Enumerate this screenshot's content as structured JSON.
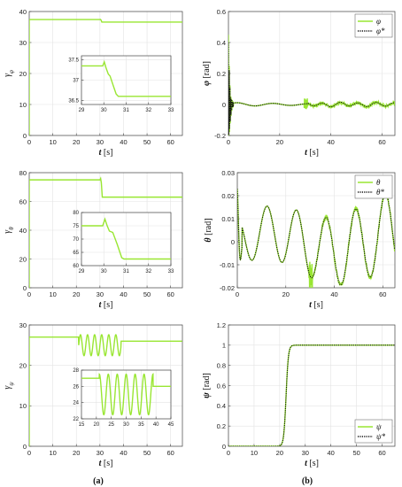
{
  "captions": [
    "(a)",
    "(b)"
  ],
  "colors": {
    "green": "#99e632",
    "black": "#111111"
  },
  "chart_data": [
    {
      "type": "line",
      "id": "gamma-phi",
      "ylabel": "γφ",
      "xlabel": "t [s]",
      "xlim": [
        0,
        65
      ],
      "ylim": [
        0,
        40
      ],
      "xticks": [
        0,
        10,
        20,
        30,
        40,
        50,
        60
      ],
      "yticks": [
        0,
        10,
        20,
        30,
        40
      ],
      "grid": true,
      "series": [
        {
          "color": "#99e632",
          "points": [
            [
              0,
              0
            ],
            [
              0,
              37.4
            ],
            [
              29.9,
              37.4
            ],
            [
              30.2,
              37.45
            ],
            [
              30.5,
              37.2
            ],
            [
              30.8,
              36.6
            ],
            [
              65,
              36.6
            ]
          ]
        }
      ],
      "inset": {
        "xlim": [
          29,
          33
        ],
        "ylim": [
          36.4,
          37.6
        ],
        "xticks": [
          29,
          30,
          31,
          32,
          33
        ],
        "yticks": [
          36.5,
          37,
          37.5
        ],
        "series": [
          {
            "color": "#99e632",
            "points": [
              [
                29,
                37.35
              ],
              [
                29.95,
                37.35
              ],
              [
                30.02,
                37.45
              ],
              [
                30.1,
                37.3
              ],
              [
                30.2,
                37.15
              ],
              [
                30.28,
                37.1
              ],
              [
                30.4,
                36.9
              ],
              [
                30.55,
                36.66
              ],
              [
                30.65,
                36.6
              ],
              [
                33,
                36.6
              ]
            ]
          }
        ]
      }
    },
    {
      "type": "line",
      "id": "phi",
      "ylabel": "φ [rad]",
      "xlabel": "t [s]",
      "xlim": [
        0,
        65
      ],
      "ylim": [
        -0.2,
        0.6
      ],
      "xticks": [
        0,
        20,
        40,
        60
      ],
      "yticks": [
        -0.2,
        0,
        0.2,
        0.4,
        0.6
      ],
      "grid": true,
      "legend": {
        "position": "top-right",
        "entries": [
          "φ",
          "φ*"
        ]
      },
      "series": [
        {
          "name": "φ",
          "color": "#99e632",
          "generator": "phi"
        },
        {
          "name": "φ*",
          "color": "#111111",
          "style": "dotted",
          "generator": "phi_ref"
        }
      ]
    },
    {
      "type": "line",
      "id": "gamma-theta",
      "ylabel": "γθ",
      "xlabel": "t [s]",
      "xlim": [
        0,
        65
      ],
      "ylim": [
        0,
        80
      ],
      "xticks": [
        0,
        10,
        20,
        30,
        40,
        50,
        60
      ],
      "yticks": [
        0,
        20,
        40,
        60,
        80
      ],
      "grid": true,
      "series": [
        {
          "color": "#99e632",
          "points": [
            [
              0,
              0
            ],
            [
              0,
              75
            ],
            [
              30,
              75
            ],
            [
              30.3,
              76
            ],
            [
              30.6,
              73
            ],
            [
              31,
              63
            ],
            [
              65,
              63
            ]
          ]
        }
      ],
      "inset": {
        "xlim": [
          29,
          33
        ],
        "ylim": [
          60,
          80
        ],
        "xticks": [
          29,
          30,
          31,
          32,
          33
        ],
        "yticks": [
          60,
          65,
          70,
          75,
          80
        ],
        "series": [
          {
            "color": "#99e632",
            "points": [
              [
                29,
                75
              ],
              [
                29.95,
                75
              ],
              [
                30.05,
                77.5
              ],
              [
                30.15,
                75
              ],
              [
                30.25,
                73
              ],
              [
                30.4,
                72.5
              ],
              [
                30.6,
                68
              ],
              [
                30.8,
                63
              ],
              [
                30.9,
                62.5
              ],
              [
                33,
                62.5
              ]
            ]
          }
        ]
      }
    },
    {
      "type": "line",
      "id": "theta",
      "ylabel": "θ [rad]",
      "xlabel": "t [s]",
      "xlim": [
        0,
        65
      ],
      "ylim": [
        -0.02,
        0.03
      ],
      "xticks": [
        0,
        20,
        40,
        60
      ],
      "yticks": [
        -0.02,
        -0.01,
        0,
        0.01,
        0.02,
        0.03
      ],
      "grid": true,
      "legend": {
        "position": "top-right",
        "entries": [
          "θ",
          "θ*"
        ]
      },
      "series": [
        {
          "name": "θ",
          "color": "#99e632",
          "generator": "theta"
        },
        {
          "name": "θ*",
          "color": "#111111",
          "style": "dotted",
          "generator": "theta_ref"
        }
      ]
    },
    {
      "type": "line",
      "id": "gamma-psi",
      "ylabel": "γψ",
      "xlabel": "t [s]",
      "xlim": [
        0,
        65
      ],
      "ylim": [
        0,
        30
      ],
      "xticks": [
        0,
        10,
        20,
        30,
        40,
        50,
        60
      ],
      "yticks": [
        0,
        10,
        20,
        30
      ],
      "grid": true,
      "series": [
        {
          "color": "#99e632",
          "generator": "gamma_psi"
        }
      ],
      "inset": {
        "xlim": [
          15,
          45
        ],
        "ylim": [
          22,
          28
        ],
        "xticks": [
          15,
          20,
          25,
          30,
          35,
          40,
          45
        ],
        "yticks": [
          22,
          24,
          26,
          28
        ],
        "series": [
          {
            "color": "#99e632",
            "generator": "gamma_psi_inset"
          }
        ]
      }
    },
    {
      "type": "line",
      "id": "psi",
      "ylabel": "ψ [rad]",
      "xlabel": "t [s]",
      "xlim": [
        0,
        65
      ],
      "ylim": [
        0,
        1.2
      ],
      "xticks": [
        0,
        10,
        20,
        30,
        40,
        50,
        60
      ],
      "yticks": [
        0,
        0.2,
        0.4,
        0.6,
        0.8,
        1,
        1.2
      ],
      "grid": true,
      "legend": {
        "position": "bottom-right",
        "entries": [
          "ψ",
          "ψ*"
        ]
      },
      "series": [
        {
          "name": "ψ",
          "color": "#99e632",
          "generator": "psi"
        },
        {
          "name": "ψ*",
          "color": "#111111",
          "style": "dotted",
          "generator": "psi"
        }
      ]
    }
  ]
}
